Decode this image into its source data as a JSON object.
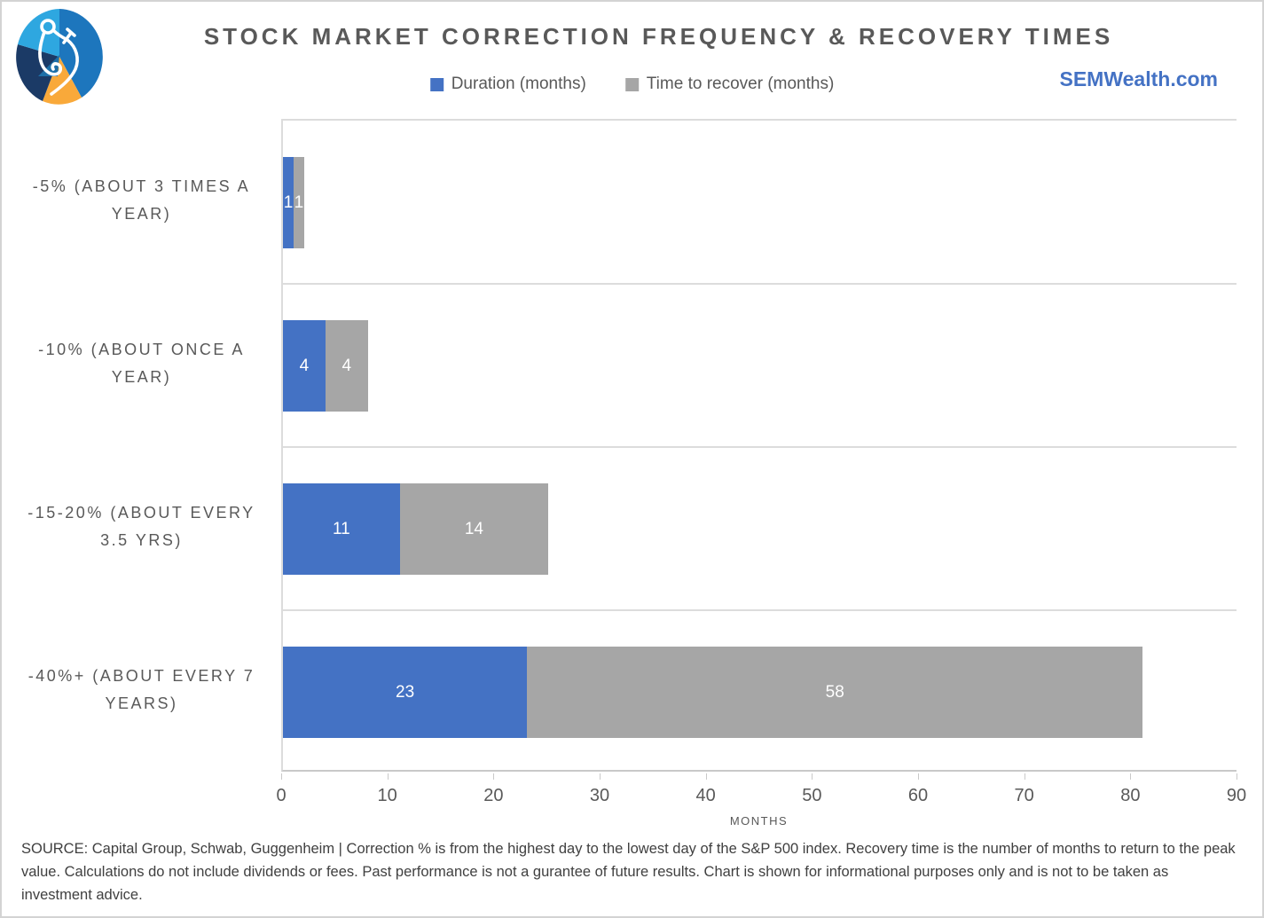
{
  "header": {
    "title": "STOCK MARKET CORRECTION FREQUENCY & RECOVERY TIMES"
  },
  "site": {
    "label": "SEMWealth.com",
    "color": "#4472C4"
  },
  "logo": {
    "name": "sem-wealth-calipers-logo",
    "colors": {
      "light_blue": "#2EA7E0",
      "medium_blue": "#1D76BD",
      "navy": "#1B3A66",
      "teal_triangle": "#1D6FA8",
      "orange": "#F9A93A",
      "calipers": "#FFFFFF"
    }
  },
  "chart_data": {
    "type": "bar",
    "orientation": "horizontal",
    "stacked": true,
    "title": "STOCK MARKET CORRECTION FREQUENCY & RECOVERY TIMES",
    "categories": [
      "-5% (ABOUT 3 TIMES A YEAR)",
      "-10% (ABOUT ONCE A YEAR)",
      "-15-20% (ABOUT EVERY 3.5 YRS)",
      "-40%+ (ABOUT EVERY 7 YEARS)"
    ],
    "series": [
      {
        "name": "Duration (months)",
        "color": "#4472C4",
        "values": [
          1,
          4,
          11,
          23
        ]
      },
      {
        "name": "Time to recover (months)",
        "color": "#A6A6A6",
        "values": [
          1,
          4,
          14,
          58
        ]
      }
    ],
    "value_label_color": "#FFFFFF",
    "xlabel": "MONTHS",
    "xlim": [
      0,
      90
    ],
    "xticks": [
      0,
      10,
      20,
      30,
      40,
      50,
      60,
      70,
      80,
      90
    ],
    "grid": "horizontal row separators only",
    "legend_position": "top-center"
  },
  "footer": {
    "source": "SOURCE: Capital Group, Schwab, Guggenheim | Correction % is from the highest day to the lowest day of the S&P 500 index. Recovery time is the number of months to return to the peak value. Calculations do not include dividends or fees.  Past performance is not a gurantee of future results. Chart is shown for informational purposes only and is not to be taken as investment advice."
  }
}
